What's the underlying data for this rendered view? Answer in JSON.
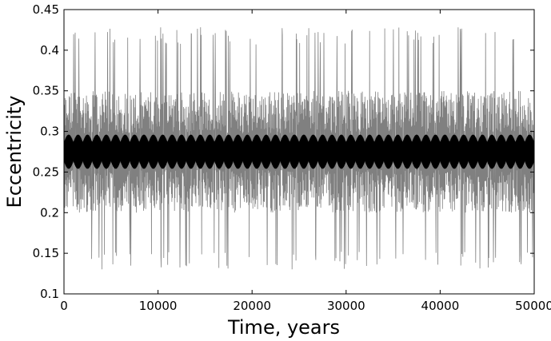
{
  "chart_data": {
    "type": "line",
    "title": "",
    "xlabel": "Time, years",
    "ylabel": "Eccentricity",
    "xlim": [
      0,
      50000
    ],
    "ylim": [
      0.1,
      0.45
    ],
    "xticks": [
      0,
      10000,
      20000,
      30000,
      40000,
      50000
    ],
    "xtick_labels": [
      "0",
      "10000",
      "20000",
      "30000",
      "40000",
      "50000"
    ],
    "yticks": [
      0.1,
      0.15,
      0.2,
      0.25,
      0.3,
      0.35,
      0.4,
      0.45
    ],
    "ytick_labels": [
      "0.1",
      "0.15",
      "0.2",
      "0.25",
      "0.3",
      "0.35",
      "0.4",
      "0.45"
    ],
    "grid": false,
    "legend": "none",
    "series": [
      {
        "color": "#808080",
        "x_range": [
          0,
          50000
        ],
        "mean": 0.275,
        "typical_band": [
          0.2,
          0.35
        ],
        "extremes": [
          0.13,
          0.43
        ]
      },
      {
        "color": "#000000",
        "x_range": [
          0,
          50000
        ],
        "mean": 0.275,
        "envelope_band": [
          0.255,
          0.297
        ],
        "modulation_period": 1000
      }
    ]
  }
}
